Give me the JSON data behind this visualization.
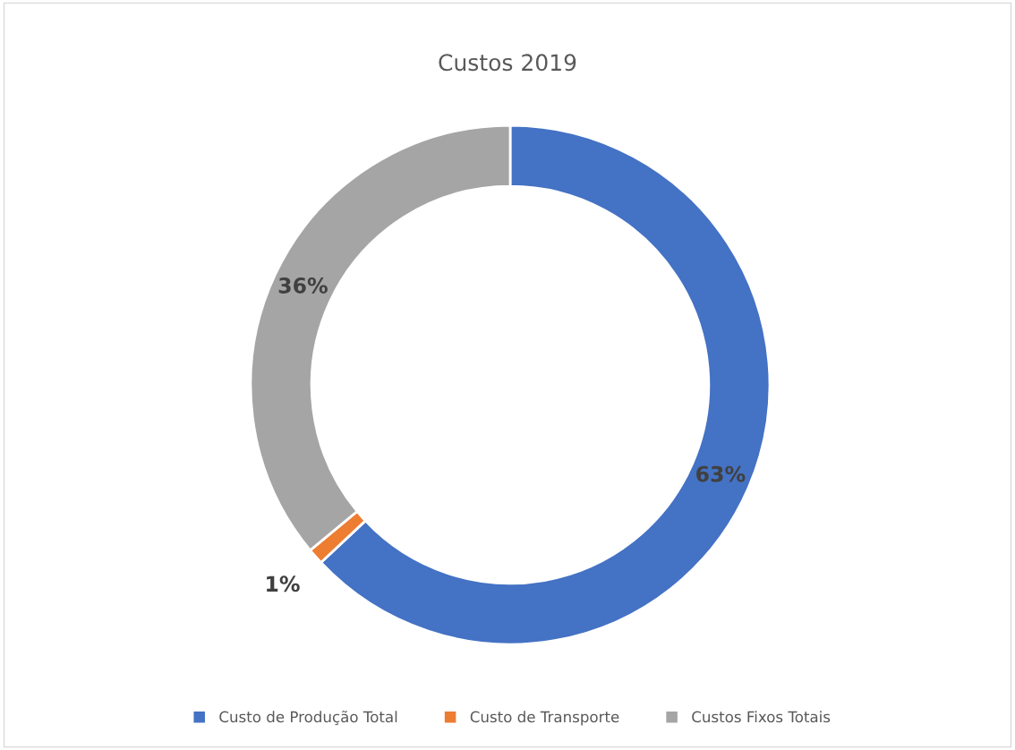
{
  "chart_data": {
    "type": "donut",
    "title": "Custos 2019",
    "categories": [
      "Custo de Produção Total",
      "Custo de Transporte",
      "Custos Fixos Totais"
    ],
    "values": [
      63,
      1,
      36
    ],
    "colors": [
      "#4472c4",
      "#ed7d31",
      "#a5a5a5"
    ],
    "value_labels": [
      "63%",
      "1%",
      "36%"
    ],
    "legend": "bottom"
  }
}
